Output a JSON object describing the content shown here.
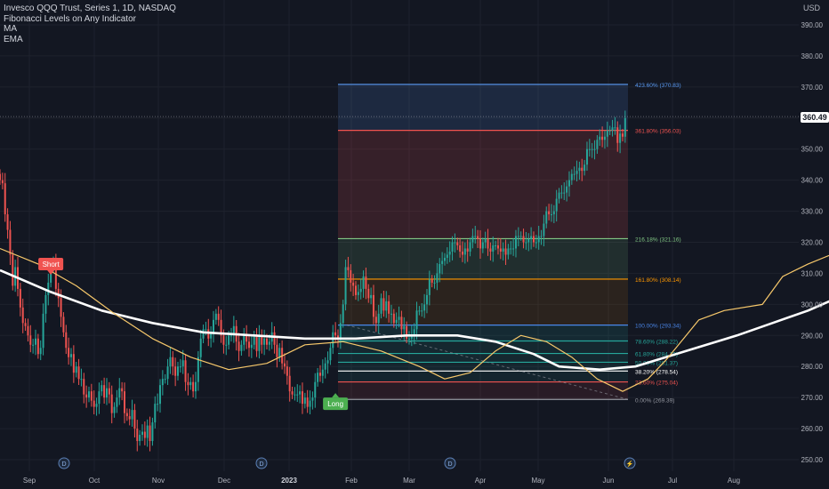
{
  "legend": {
    "title": "Invesco QQQ Trust, Series 1, 1D, NASDAQ",
    "indicator": "Fibonacci Levels on Any Indicator",
    "ma": "MA",
    "ema": "EMA"
  },
  "currency": "USD",
  "last_price": "360.49",
  "colors": {
    "background": "#131722",
    "up": "#26a69a",
    "down": "#ef5350",
    "ma": "#ffffff",
    "ema": "#f7c86b",
    "grid": "#1e222d",
    "text": "#b2b5be"
  },
  "chart_data": {
    "type": "candlestick",
    "ylim": [
      247,
      396
    ],
    "y_ticks": [
      250,
      260,
      270,
      280,
      290,
      300,
      310,
      320,
      330,
      340,
      350,
      360,
      370,
      380,
      390
    ],
    "x_ticks": [
      "Sep",
      "Oct",
      "Nov",
      "Dec",
      "2023",
      "Feb",
      "Mar",
      "Apr",
      "May",
      "Jun",
      "Jul",
      "Aug"
    ],
    "event_markers": [
      {
        "label": "D",
        "date_index": 51
      },
      {
        "label": "D",
        "date_index": 115
      },
      {
        "label": "D",
        "date_index": 180
      },
      {
        "label": "⚡",
        "date_index": 246
      }
    ],
    "signals": [
      {
        "label": "Short",
        "date_index": 20,
        "price": 313.0
      },
      {
        "label": "Long",
        "date_index": 132,
        "price": 268.0
      }
    ],
    "fibonacci": [
      {
        "label": "423.60% (370.83)",
        "price": 370.83,
        "color": "#5b9cf6"
      },
      {
        "label": "361.80% (356.03)",
        "price": 356.03,
        "color": "#f05350"
      },
      {
        "label": "216.18% (321.16)",
        "price": 321.16,
        "color": "#81c784"
      },
      {
        "label": "161.80% (308.14)",
        "price": 308.14,
        "color": "#ff9800"
      },
      {
        "label": "100.00% (293.34)",
        "price": 293.34,
        "color": "#4a86e8"
      },
      {
        "label": "78.60% (288.22)",
        "price": 288.22,
        "color": "#26a69a"
      },
      {
        "label": "61.80% (284.19)",
        "price": 284.19,
        "color": "#26a69a"
      },
      {
        "label": "50.00% (281.37)",
        "price": 281.37,
        "color": "#26a69a"
      },
      {
        "label": "38.20% (278.54)",
        "price": 278.54,
        "color": "#ffffff"
      },
      {
        "label": "23.60% (275.04)",
        "price": 275.04,
        "color": "#f05350"
      },
      {
        "label": "0.00% (269.39)",
        "price": 269.39,
        "color": "#9598a1"
      }
    ],
    "series": [
      {
        "name": "MA",
        "values": [
          [
            0,
            311
          ],
          [
            20,
            304
          ],
          [
            40,
            298
          ],
          [
            60,
            294
          ],
          [
            80,
            291
          ],
          [
            100,
            290
          ],
          [
            120,
            289
          ],
          [
            140,
            289
          ],
          [
            160,
            290
          ],
          [
            180,
            290
          ],
          [
            195,
            288
          ],
          [
            210,
            284
          ],
          [
            220,
            280
          ],
          [
            236,
            279
          ],
          [
            250,
            280
          ],
          [
            262,
            283
          ],
          [
            274,
            286
          ],
          [
            290,
            290
          ],
          [
            304,
            294
          ],
          [
            318,
            298
          ],
          [
            332,
            303
          ],
          [
            342,
            307
          ],
          [
            352,
            310
          ],
          [
            362,
            313
          ]
        ]
      },
      {
        "name": "EMA",
        "values": [
          [
            0,
            318
          ],
          [
            15,
            313
          ],
          [
            30,
            306
          ],
          [
            45,
            297
          ],
          [
            60,
            289
          ],
          [
            75,
            283
          ],
          [
            90,
            279
          ],
          [
            105,
            281
          ],
          [
            120,
            287
          ],
          [
            135,
            288
          ],
          [
            150,
            285
          ],
          [
            165,
            280
          ],
          [
            175,
            276
          ],
          [
            185,
            278
          ],
          [
            195,
            285
          ],
          [
            205,
            290
          ],
          [
            215,
            288
          ],
          [
            225,
            283
          ],
          [
            235,
            276
          ],
          [
            245,
            272
          ],
          [
            255,
            276
          ],
          [
            262,
            282
          ],
          [
            268,
            288
          ],
          [
            275,
            295
          ],
          [
            285,
            298
          ],
          [
            300,
            300
          ],
          [
            308,
            309
          ],
          [
            318,
            313
          ],
          [
            330,
            317
          ],
          [
            340,
            326
          ],
          [
            350,
            336
          ],
          [
            360,
            342
          ],
          [
            368,
            348
          ],
          [
            374,
            354
          ],
          [
            378,
            356
          ]
        ]
      }
    ],
    "close": [
      340,
      339,
      329,
      324,
      316,
      306,
      312,
      305,
      299,
      294,
      293,
      290,
      287,
      287,
      289,
      284,
      286,
      297,
      303,
      307,
      312,
      313,
      305,
      302,
      296,
      291,
      286,
      283,
      284,
      278,
      280,
      276,
      276,
      271,
      270,
      272,
      269,
      267,
      268,
      272,
      274,
      270,
      273,
      271,
      265,
      267,
      270,
      273,
      272,
      265,
      264,
      263,
      266,
      260,
      256,
      258,
      259,
      257,
      261,
      256,
      262,
      268,
      268,
      274,
      276,
      276,
      280,
      283,
      280,
      277,
      280,
      280,
      282,
      275,
      274,
      275,
      272,
      275,
      283,
      289,
      292,
      292,
      289,
      291,
      295,
      297,
      295,
      290,
      287,
      287,
      290,
      290,
      293,
      288,
      285,
      287,
      290,
      288,
      286,
      287,
      290,
      285,
      290,
      287,
      289,
      287,
      288,
      291,
      287,
      283,
      286,
      281,
      280,
      277,
      272,
      271,
      271,
      271,
      272,
      268,
      270,
      267,
      269,
      270,
      275,
      278,
      277,
      279,
      281,
      282,
      286,
      291,
      290,
      289,
      294,
      300,
      312,
      311,
      307,
      306,
      303,
      304,
      305,
      309,
      305,
      302,
      303,
      296,
      294,
      297,
      302,
      298,
      301,
      297,
      297,
      294,
      295,
      296,
      292,
      293,
      289,
      289,
      290,
      292,
      298,
      298,
      298,
      300,
      303,
      308,
      307,
      307,
      310,
      313,
      314,
      315,
      316,
      317,
      320,
      320,
      319,
      317,
      316,
      318,
      317,
      320,
      322,
      322,
      321,
      318,
      320,
      321,
      318,
      317,
      319,
      319,
      318,
      317,
      318,
      316,
      318,
      318,
      318,
      322,
      322,
      322,
      320,
      320,
      321,
      322,
      320,
      320,
      322,
      322,
      326,
      330,
      329,
      329,
      330,
      334,
      336,
      336,
      336,
      338,
      340,
      342,
      342,
      343,
      344,
      343,
      345,
      350,
      350,
      350,
      350,
      353,
      354,
      353,
      354,
      356,
      356,
      357,
      357,
      352,
      355,
      354,
      360
    ]
  }
}
